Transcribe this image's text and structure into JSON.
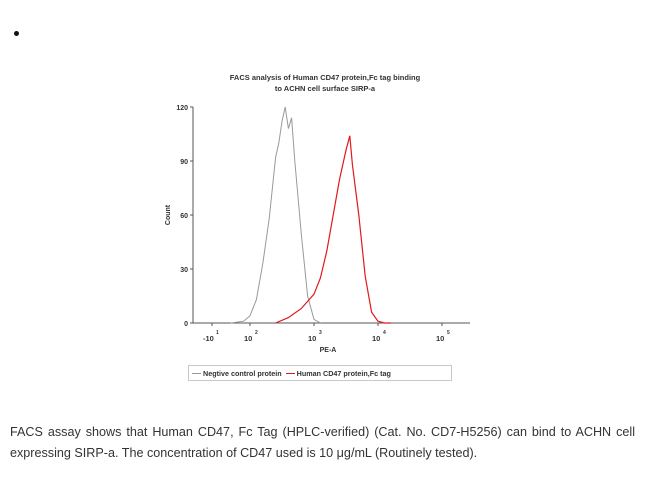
{
  "page": {
    "bullet": "•",
    "caption": "FACS assay shows that Human CD47, Fc Tag (HPLC-verified) (Cat. No. CD7-H5256) can bind to ACHN cell expressing SIRP-a. The concentration of CD47 used is 10 μg/mL (Routinely tested)."
  },
  "chart": {
    "title_line1": "FACS analysis of Human CD47 protein,Fc tag binding",
    "title_line2": "to ACHN cell surface SIRP-a",
    "ylabel": "Count",
    "xlabel": "PE-A",
    "yticks": [
      "0",
      "30",
      "60",
      "90",
      "120"
    ],
    "xticks": [
      "-10",
      "10",
      "10",
      "10",
      "10"
    ],
    "xtick_exponents": [
      "1",
      "2",
      "3",
      "4",
      "5"
    ],
    "legend": [
      {
        "label": "Negtive control protein",
        "color": "#999999"
      },
      {
        "label": "Human CD47 protein,Fc tag",
        "color": "#e0191b"
      }
    ]
  },
  "chart_data": {
    "type": "line",
    "title": "FACS analysis of Human CD47 protein,Fc tag binding to ACHN cell surface SIRP-a",
    "xlabel": "PE-A",
    "ylabel": "Count",
    "xscale": "biexponential (log10)",
    "ylim": [
      0,
      120
    ],
    "yticks": [
      0,
      30,
      60,
      90,
      120
    ],
    "xtick_labels": [
      "-10^1",
      "10^2",
      "10^3",
      "10^4",
      "10^5"
    ],
    "legend_position": "bottom",
    "grid": false,
    "series": [
      {
        "name": "Negtive control protein",
        "color": "#999999",
        "x_log10": [
          1.7,
          1.9,
          2.0,
          2.1,
          2.2,
          2.3,
          2.4,
          2.45,
          2.5,
          2.55,
          2.6,
          2.65,
          2.7,
          2.8,
          2.9,
          3.0,
          3.1
        ],
        "y": [
          0,
          1,
          4,
          13,
          33,
          58,
          92,
          100,
          112,
          120,
          108,
          114,
          90,
          50,
          15,
          2,
          0
        ]
      },
      {
        "name": "Human CD47 protein,Fc tag",
        "color": "#e0191b",
        "x_log10": [
          2.4,
          2.6,
          2.8,
          3.0,
          3.1,
          3.2,
          3.3,
          3.4,
          3.5,
          3.56,
          3.6,
          3.7,
          3.8,
          3.9,
          4.0,
          4.1,
          4.2
        ],
        "y": [
          0,
          3,
          8,
          16,
          25,
          40,
          60,
          80,
          96,
          104,
          88,
          60,
          26,
          6,
          1,
          0,
          0
        ]
      }
    ]
  }
}
